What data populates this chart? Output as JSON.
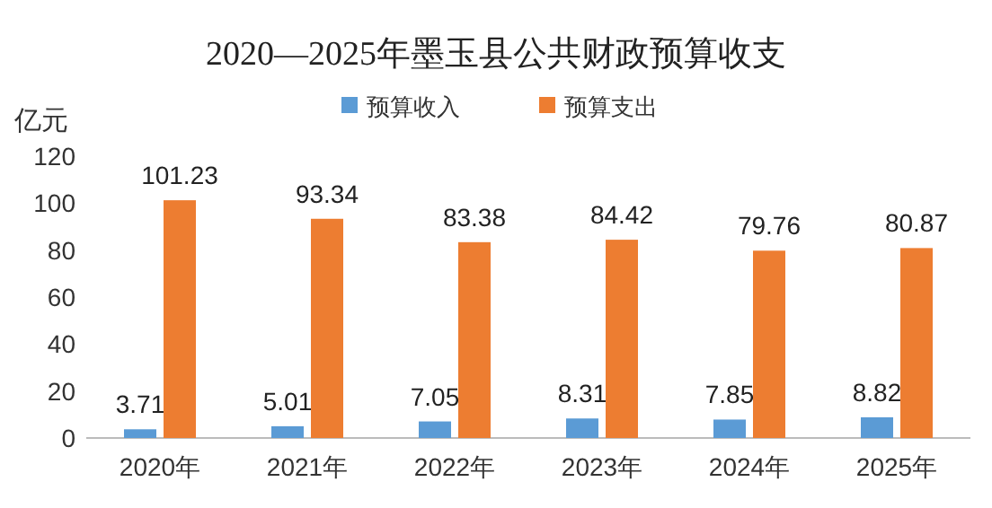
{
  "chart_data": {
    "type": "bar",
    "title": "2020—2025年墨玉县公共财政预算收支",
    "ylabel": "亿元",
    "categories": [
      "2020年",
      "2021年",
      "2022年",
      "2023年",
      "2024年",
      "2025年"
    ],
    "series": [
      {
        "name": "预算收入",
        "color": "#5b9bd5",
        "values": [
          3.71,
          5.01,
          7.05,
          8.31,
          7.85,
          8.82
        ]
      },
      {
        "name": "预算支出",
        "color": "#ed7d31",
        "values": [
          101.23,
          93.34,
          83.38,
          84.42,
          79.76,
          80.87
        ]
      }
    ],
    "ylim": [
      0,
      120
    ],
    "yticks": [
      0,
      20,
      40,
      60,
      80,
      100,
      120
    ],
    "legend": "top",
    "data_labels": true
  }
}
